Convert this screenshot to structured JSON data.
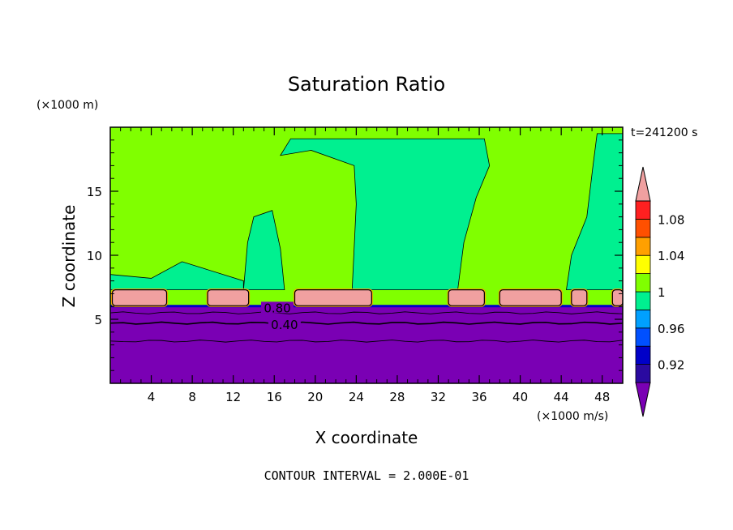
{
  "chart_data": {
    "type": "heatmap",
    "title": "Saturation Ratio",
    "xlabel": "X coordinate",
    "ylabel": "Z coordinate",
    "x_unit": "(×1000 m/s)",
    "y_unit": "(×1000 m)",
    "time_label": "t=241200 s",
    "footer": "CONTOUR INTERVAL = 2.000E-01",
    "xlim": [
      0,
      50
    ],
    "ylim": [
      0,
      20
    ],
    "x_ticks": [
      4,
      8,
      12,
      16,
      20,
      24,
      28,
      32,
      36,
      40,
      44,
      48
    ],
    "y_ticks": [
      5,
      10,
      15
    ],
    "colorbar": {
      "levels": [
        0.9,
        0.92,
        0.94,
        0.96,
        0.98,
        1.0,
        1.02,
        1.04,
        1.06,
        1.08,
        1.1
      ],
      "labels": [
        "0.92",
        "0.96",
        "1",
        "1.04",
        "1.08"
      ],
      "colors": [
        "#7a00b4",
        "#2a0aa0",
        "#0000c8",
        "#0050ff",
        "#00a0ff",
        "#00f090",
        "#80ff00",
        "#ffff00",
        "#ffa000",
        "#ff5000",
        "#ff2020",
        "#f0a0a0"
      ]
    },
    "contour_labels": [
      {
        "text": "0.80",
        "x": 16.3,
        "z": 5.8
      },
      {
        "text": "0.40",
        "x": 17.0,
        "z": 4.5
      }
    ],
    "regions": {
      "dry_layer_top_z": 6.0,
      "moist_layer_top_z": 7.3,
      "saturated_columns_x": [
        [
          13,
          17
        ],
        [
          23.6,
          34.5
        ],
        [
          44.5,
          50
        ]
      ],
      "supersaturated_patches": [
        [
          0.2,
          5.5
        ],
        [
          9.5,
          13.5
        ],
        [
          18,
          25.5
        ],
        [
          33,
          36.5
        ],
        [
          38,
          44
        ],
        [
          45,
          46.5
        ],
        [
          49,
          50
        ]
      ]
    }
  }
}
